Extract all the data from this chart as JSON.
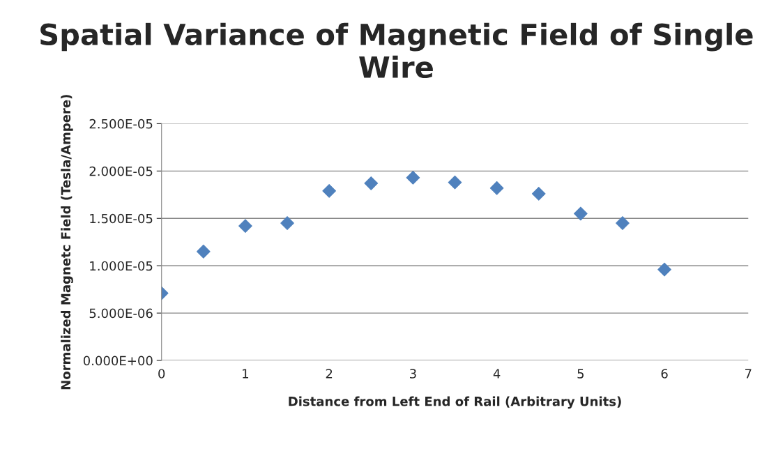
{
  "chart_data": {
    "type": "scatter",
    "title": "Spatial Variance of Magnetic Field of Single Wire",
    "xlabel": "Distance from Left End of Rail (Arbitrary Units)",
    "ylabel": "Normalized Magnetc Field (Tesla/Ampere)",
    "x": [
      0,
      0.5,
      1,
      1.5,
      2,
      2.5,
      3,
      3.5,
      4,
      4.5,
      5,
      5.5,
      6
    ],
    "series": [
      {
        "color": "#4f81bd",
        "values": [
          7.1e-06,
          1.15e-05,
          1.42e-05,
          1.45e-05,
          1.79e-05,
          1.87e-05,
          1.93e-05,
          1.88e-05,
          1.82e-05,
          1.76e-05,
          1.55e-05,
          1.45e-05,
          9.6e-06
        ]
      }
    ],
    "xlim": [
      0,
      7
    ],
    "xticks": [
      0,
      1,
      2,
      3,
      4,
      5,
      6,
      7
    ],
    "ylim": [
      0,
      2.5e-05
    ],
    "yticks": [
      {
        "value": 0,
        "label": "0.000E+00"
      },
      {
        "value": 5e-06,
        "label": "5.000E-06"
      },
      {
        "value": 1e-05,
        "label": "1.000E-05"
      },
      {
        "value": 1.5e-05,
        "label": "1.500E-05"
      },
      {
        "value": 2e-05,
        "label": "2.000E-05"
      },
      {
        "value": 2.5e-05,
        "label": "2.500E-05"
      }
    ],
    "grid": "y",
    "marker": "diamond",
    "legend": false
  }
}
